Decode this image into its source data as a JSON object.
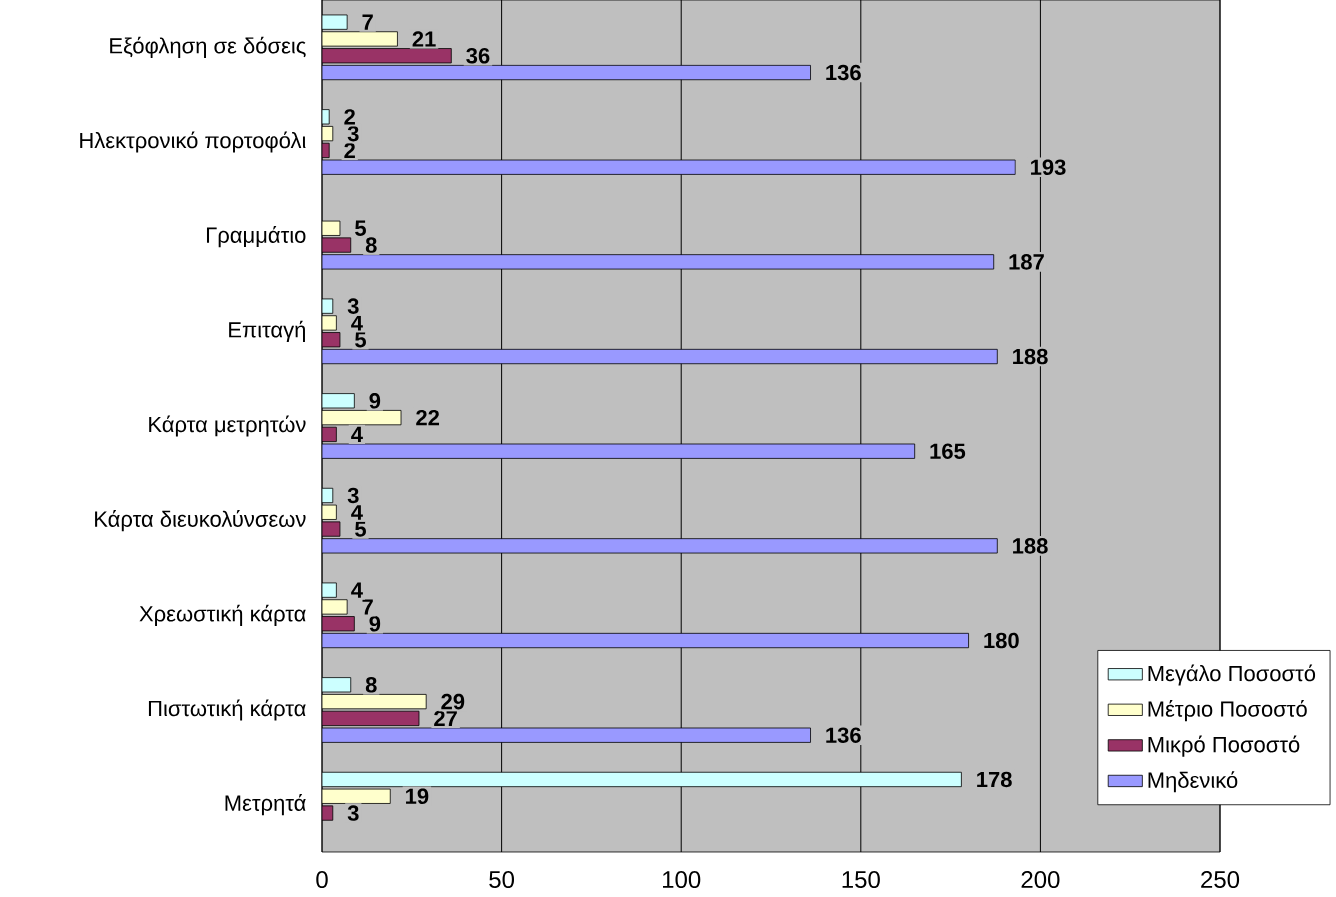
{
  "chart_data": {
    "type": "bar",
    "orientation": "horizontal",
    "categories": [
      "Εξόφληση σε δόσεις",
      "Ηλεκτρονικό πορτοφόλι",
      "Γραμμάτιο",
      "Επιταγή",
      "Κάρτα μετρητών",
      "Κάρτα διευκολύνσεων",
      "Χρεωστική κάρτα",
      "Πιστωτική κάρτα",
      "Μετρητά"
    ],
    "series": [
      {
        "name": "Μεγάλο Ποσοστό",
        "color": "#ccffff",
        "values": [
          7,
          2,
          null,
          3,
          9,
          3,
          4,
          8,
          178
        ]
      },
      {
        "name": "Μέτριο Ποσοστό",
        "color": "#ffffcc",
        "values": [
          21,
          3,
          5,
          4,
          22,
          4,
          7,
          29,
          19
        ]
      },
      {
        "name": "Μικρό Ποσοστό",
        "color": "#993366",
        "values": [
          36,
          2,
          8,
          5,
          4,
          5,
          9,
          27,
          3
        ]
      },
      {
        "name": "Μηδενικό",
        "color": "#9999ff",
        "values": [
          136,
          193,
          187,
          188,
          165,
          188,
          180,
          136,
          null
        ]
      }
    ],
    "xlim": [
      0,
      250
    ],
    "xticks": [
      0,
      50,
      100,
      150,
      200,
      250
    ],
    "grid": "x",
    "legend": "right",
    "data_labels": true
  }
}
